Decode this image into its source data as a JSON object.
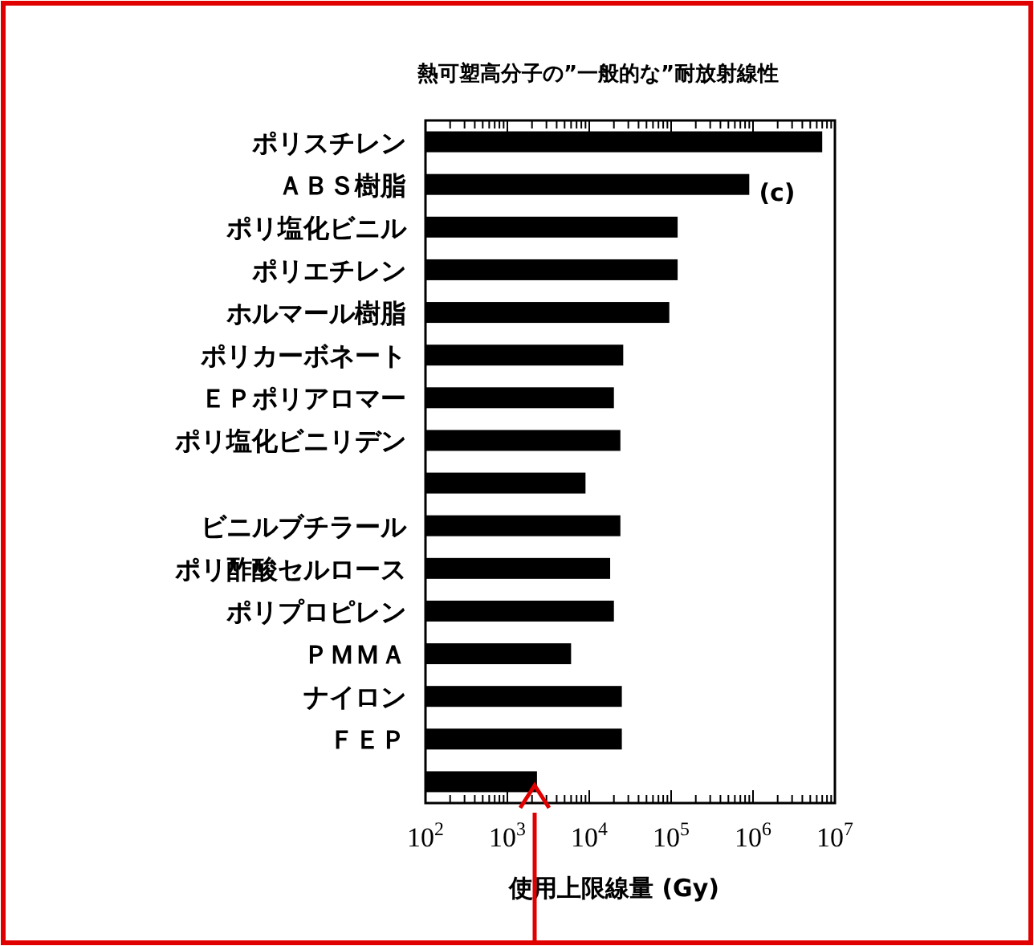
{
  "chart_data": {
    "type": "bar",
    "orientation": "horizontal",
    "log": "x",
    "title": "熱可塑高分子の”一般的な”耐放射線性",
    "xlabel": "使用上限線量 (Gy)",
    "categories": [
      "ポリスチレン",
      "ＡＢＳ樹脂",
      "ポリ塩化ビニル",
      "ポリエチレン",
      "ホルマール樹脂",
      "ポリカーボネート",
      "ＥＰポリアロマー",
      "ポリ塩化ビニリデン",
      null,
      "ビニルブチラール",
      "ポリ酢酸セルロース",
      "ポリプロピレン",
      "ＰＭＭＡ",
      "ナイロン",
      "ＦＥＰ",
      null
    ],
    "values": [
      7000000,
      900000,
      120000,
      120000,
      95000,
      26000,
      20000,
      24000,
      9000,
      24000,
      18000,
      20000,
      6000,
      25000,
      25000,
      2300
    ],
    "color": "#000000",
    "xlim": [
      100,
      10000000
    ],
    "xticks": [
      {
        "value": 100,
        "label": "10$^{2}$"
      },
      {
        "value": 1000,
        "label": "10$^{3}$"
      },
      {
        "value": 10000,
        "label": "10$^{4}$"
      },
      {
        "value": 100000,
        "label": "10$^{5}$"
      },
      {
        "value": 1000000,
        "label": "10$^{6}$"
      },
      {
        "value": 10000000,
        "label": "10$^{7}$"
      }
    ],
    "annotations": [
      "(c)"
    ]
  }
}
